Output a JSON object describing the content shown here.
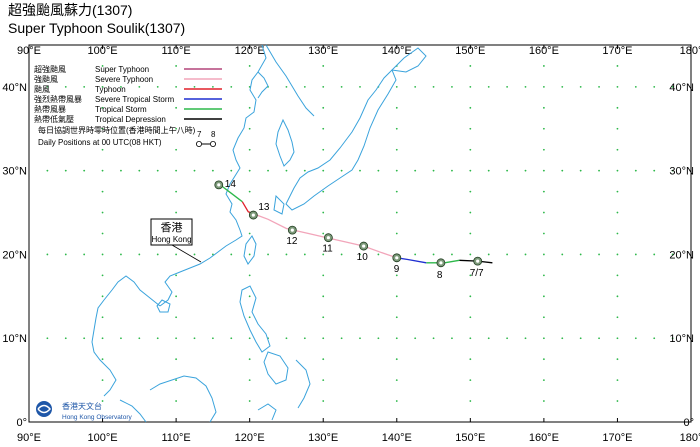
{
  "title": {
    "zh": "超強颱風蘇力(1307)",
    "en": "Super Typhoon Soulik(1307)"
  },
  "axes": {
    "lon_min": 90,
    "lon_max": 180,
    "lat_min": 0,
    "lat_max": 45,
    "lon_ticks": [
      "90°E",
      "100°E",
      "110°E",
      "120°E",
      "130°E",
      "140°E",
      "150°E",
      "160°E",
      "170°E",
      "180°"
    ],
    "lat_ticks_left": [
      "0°",
      "10°N",
      "20°N",
      "30°N",
      "40°N"
    ],
    "lat_ticks_right": [
      "0°",
      "10°N",
      "20°N",
      "30°N",
      "40°N"
    ],
    "grid": "dotted"
  },
  "legend": {
    "position": "top-left",
    "items": [
      {
        "zh": "超強颱風",
        "en": "Super Typhoon",
        "color": "#b4457a"
      },
      {
        "zh": "強颱風",
        "en": "Severe Typhoon",
        "color": "#f2a5ba"
      },
      {
        "zh": "颱風",
        "en": "Typhoon",
        "color": "#e0202a"
      },
      {
        "zh": "強烈熱帶風暴",
        "en": "Severe Tropical Storm",
        "color": "#1f2fd1"
      },
      {
        "zh": "熱帶風暴",
        "en": "Tropical Storm",
        "color": "#2db84a"
      },
      {
        "zh": "熱帶低氣壓",
        "en": "Tropical Depression",
        "color": "#000000"
      }
    ],
    "daily_zh": "每日協調世界時零時位置(香港時間上午八時)",
    "daily_en": "Daily Positions at 00 UTC(08 HKT)",
    "sample_labels": [
      "7",
      "8"
    ]
  },
  "hong_kong_label": {
    "zh": "香港",
    "en": "Hong Kong"
  },
  "logo": {
    "zh": "香港天文台",
    "en": "Hong Kong Observatory"
  },
  "track": {
    "points": [
      {
        "lon": 153.0,
        "lat": 19.0
      },
      {
        "lon": 151.0,
        "lat": 19.2
      },
      {
        "lon": 148.5,
        "lat": 19.3
      },
      {
        "lon": 146.5,
        "lat": 19.0
      },
      {
        "lon": 144.0,
        "lat": 19.0
      },
      {
        "lon": 141.5,
        "lat": 19.4
      },
      {
        "lon": 140.0,
        "lat": 19.6
      },
      {
        "lon": 138.0,
        "lat": 20.2
      },
      {
        "lon": 135.5,
        "lat": 21.0
      },
      {
        "lon": 133.0,
        "lat": 21.5
      },
      {
        "lon": 130.5,
        "lat": 22.0
      },
      {
        "lon": 128.0,
        "lat": 22.5
      },
      {
        "lon": 125.0,
        "lat": 23.1
      },
      {
        "lon": 122.5,
        "lat": 24.2
      },
      {
        "lon": 121.0,
        "lat": 24.7
      },
      {
        "lon": 119.8,
        "lat": 25.1
      },
      {
        "lon": 119.0,
        "lat": 26.3
      },
      {
        "lon": 117.5,
        "lat": 27.3
      },
      {
        "lon": 116.0,
        "lat": 28.3
      }
    ],
    "segments": [
      {
        "from": 0,
        "to": 2,
        "color": "#000000"
      },
      {
        "from": 2,
        "to": 4,
        "color": "#2db84a"
      },
      {
        "from": 4,
        "to": 6,
        "color": "#1f2fd1"
      },
      {
        "from": 6,
        "to": 14,
        "color": "#f2a5ba"
      },
      {
        "from": 14,
        "to": 16,
        "color": "#e0202a"
      },
      {
        "from": 16,
        "to": 18,
        "color": "#2db84a"
      }
    ],
    "daily": [
      {
        "label": "7/7",
        "lon": 151.0,
        "lat": 19.2,
        "dx": -8,
        "dy": 15
      },
      {
        "label": "8",
        "lon": 146.0,
        "lat": 19.0,
        "dx": -4,
        "dy": 15
      },
      {
        "label": "9",
        "lon": 140.0,
        "lat": 19.6,
        "dx": -3,
        "dy": 14
      },
      {
        "label": "10",
        "lon": 135.5,
        "lat": 21.0,
        "dx": -7,
        "dy": 14
      },
      {
        "label": "11",
        "lon": 130.7,
        "lat": 22.0,
        "dx": -6,
        "dy": 14
      },
      {
        "label": "12",
        "lon": 125.8,
        "lat": 22.9,
        "dx": -6,
        "dy": 14
      },
      {
        "label": "13",
        "lon": 120.5,
        "lat": 24.7,
        "dx": 5,
        "dy": -5
      },
      {
        "label": "14",
        "lon": 115.8,
        "lat": 28.3,
        "dx": 6,
        "dy": 2
      }
    ]
  }
}
